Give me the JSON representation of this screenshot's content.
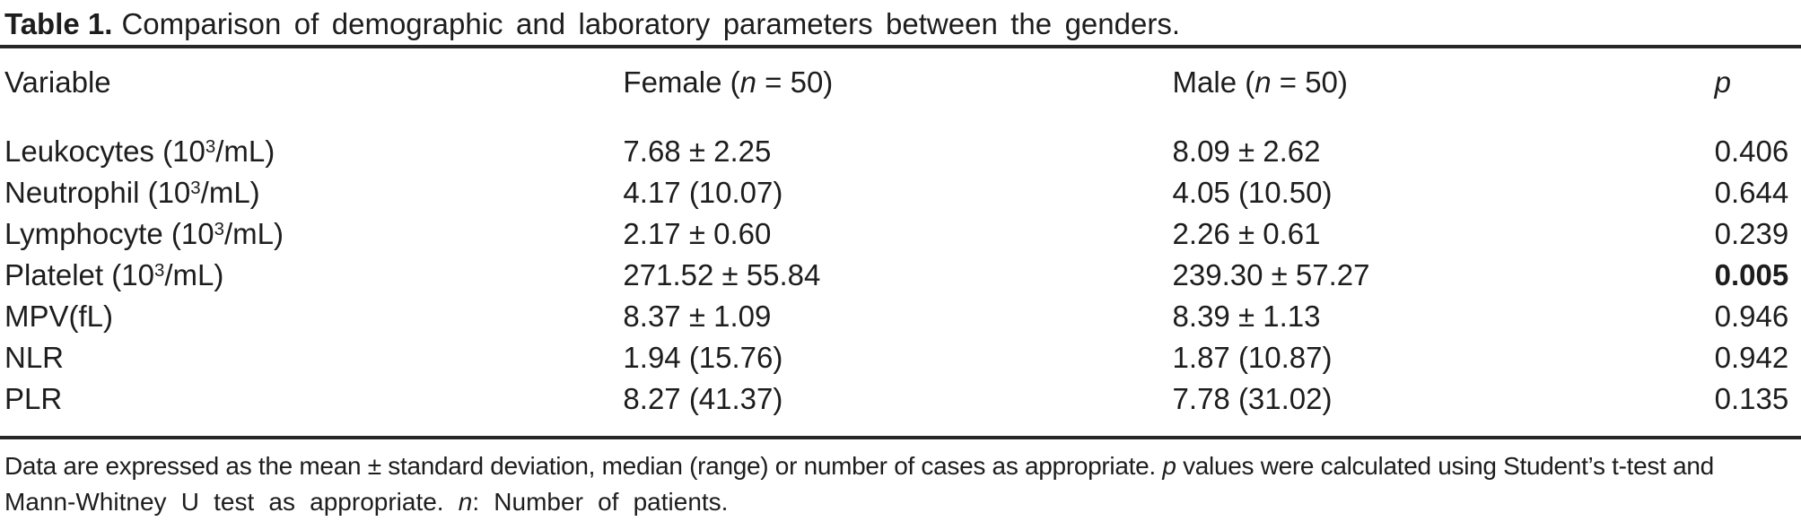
{
  "title": {
    "label_bold": "Table 1.",
    "label_rest": "Comparison of demographic and laboratory parameters between the genders."
  },
  "table": {
    "header": {
      "variable": "Variable",
      "female_pre": "Female (",
      "female_n": "n",
      "female_post": " = 50)",
      "male_pre": "Male (",
      "male_n": "n",
      "male_post": " = 50)",
      "p": "p"
    },
    "rows": [
      {
        "name_pre": "Leukocytes (10",
        "name_sup": "3",
        "name_post": "/mL)",
        "female": "7.68 ± 2.25",
        "male": "8.09 ± 2.62",
        "p": "0.406",
        "p_bold": false
      },
      {
        "name_pre": "Neutrophil (10",
        "name_sup": "3",
        "name_post": "/mL)",
        "female": "4.17 (10.07)",
        "male": "4.05 (10.50)",
        "p": "0.644",
        "p_bold": false
      },
      {
        "name_pre": "Lymphocyte (10",
        "name_sup": "3",
        "name_post": "/mL)",
        "female": "2.17 ± 0.60",
        "male": "2.26 ± 0.61",
        "p": "0.239",
        "p_bold": false
      },
      {
        "name_pre": "Platelet (10",
        "name_sup": "3",
        "name_post": "/mL)",
        "female": "271.52 ± 55.84",
        "male": "239.30 ± 57.27",
        "p": "0.005",
        "p_bold": true
      },
      {
        "name_pre": "MPV(fL)",
        "name_sup": "",
        "name_post": "",
        "female": "8.37 ± 1.09",
        "male": "8.39 ± 1.13",
        "p": "0.946",
        "p_bold": false
      },
      {
        "name_pre": "NLR",
        "name_sup": "",
        "name_post": "",
        "female": "1.94 (15.76)",
        "male": "1.87 (10.87)",
        "p": "0.942",
        "p_bold": false
      },
      {
        "name_pre": "PLR",
        "name_sup": "",
        "name_post": "",
        "female": "8.27 (41.37)",
        "male": "7.78 (31.02)",
        "p": "0.135",
        "p_bold": false
      }
    ]
  },
  "footnote": {
    "l1a": "Data are expressed as the mean ± standard deviation, median (range) or number of cases as appropriate. ",
    "l1b_italic": "p",
    "l1c": " values were calculated using Student’s t-test and",
    "l2a": "Mann-Whitney U test as appropriate. ",
    "l2b_italic": "n",
    "l2c": ": Number of patients."
  },
  "colors": {
    "text": "#1d1d1d",
    "rule": "#272727",
    "background": "#ffffff"
  }
}
